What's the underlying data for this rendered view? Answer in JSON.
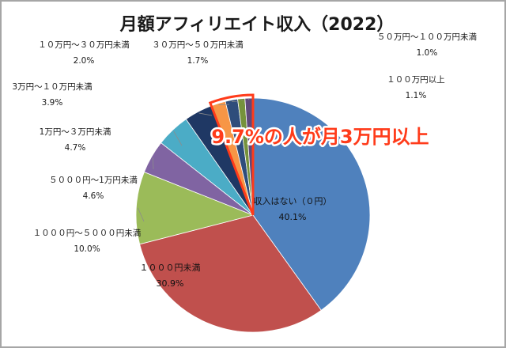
{
  "chart_data": {
    "type": "pie",
    "title": "月額アフィリエイト収入（2022）",
    "slices": [
      {
        "label": "収入はない（０円）",
        "value": 40.1,
        "pct_text": "40.1%",
        "color": "#4f81bd"
      },
      {
        "label": "１０００円未満",
        "value": 30.9,
        "pct_text": "30.9%",
        "color": "#c0504d"
      },
      {
        "label": "１０００円～５０００円未満",
        "value": 10.0,
        "pct_text": "10.0%",
        "color": "#9bbb59"
      },
      {
        "label": "５０００円～1万円未満",
        "value": 4.6,
        "pct_text": "4.6%",
        "color": "#8064a2"
      },
      {
        "label": "1万円～３万円未満",
        "value": 4.7,
        "pct_text": "4.7%",
        "color": "#4bacc6"
      },
      {
        "label": "3万円～１０万円未満",
        "value": 3.9,
        "pct_text": "3.9%",
        "color": "#1f3864"
      },
      {
        "label": "１０万円～３０万円未満",
        "value": 2.0,
        "pct_text": "2.0%",
        "color": "#f79646"
      },
      {
        "label": "３０万円～５０万円未満",
        "value": 1.7,
        "pct_text": "1.7%",
        "color": "#2e4d7b"
      },
      {
        "label": "５０万円～１００万円未満",
        "value": 1.0,
        "pct_text": "1.0%",
        "color": "#76923c"
      },
      {
        "label": "１００万円以上",
        "value": 1.1,
        "pct_text": "1.1%",
        "color": "#5f497a"
      }
    ],
    "annotation": "9.7%の人が月3万円以上",
    "annotation_color": "#ff3b1a"
  }
}
